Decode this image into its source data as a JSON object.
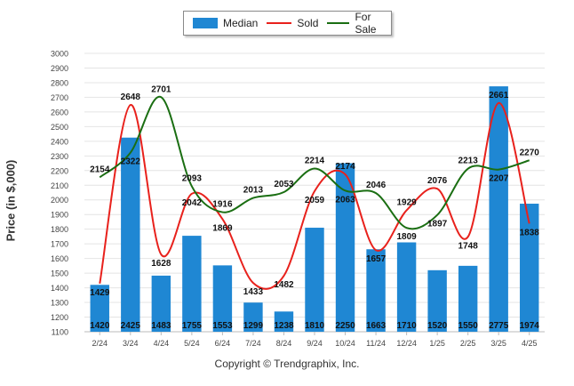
{
  "chart_data": {
    "type": "bar",
    "title": "",
    "xlabel": "",
    "ylabel": "Price (in $,000)",
    "ylim": [
      1100,
      3000
    ],
    "yticks": [
      1100,
      1200,
      1300,
      1400,
      1500,
      1600,
      1700,
      1800,
      1900,
      2000,
      2100,
      2200,
      2300,
      2400,
      2500,
      2600,
      2700,
      2800,
      2900,
      3000
    ],
    "grid": true,
    "legend_position": "top-center",
    "categories": [
      "2/24",
      "3/24",
      "4/24",
      "5/24",
      "6/24",
      "7/24",
      "8/24",
      "9/24",
      "10/24",
      "11/24",
      "12/24",
      "1/25",
      "2/25",
      "3/25",
      "4/25"
    ],
    "series": [
      {
        "name": "Median",
        "kind": "bar",
        "color": "#1f87d3",
        "values": [
          1420,
          2425,
          1483,
          1755,
          1553,
          1299,
          1238,
          1810,
          2250,
          1663,
          1710,
          1520,
          1550,
          2775,
          1974
        ]
      },
      {
        "name": "Sold",
        "kind": "line",
        "color": "#e8211c",
        "values": [
          1429,
          2648,
          1628,
          2042,
          1869,
          1433,
          1482,
          2059,
          2174,
          1657,
          1929,
          2076,
          1748,
          2661,
          1838
        ]
      },
      {
        "name": "For Sale",
        "kind": "line",
        "color": "#1a6e12",
        "values": [
          2154,
          2322,
          2701,
          2093,
          1916,
          2013,
          2053,
          2214,
          2063,
          2046,
          1809,
          1897,
          2213,
          2207,
          2270
        ]
      }
    ]
  },
  "legend": {
    "median_label": "Median",
    "sold_label": "Sold",
    "forsale_label": "For Sale"
  },
  "labels": {
    "y_axis": "Price (in $,000)",
    "copyright": "Copyright © Trendgraphix, Inc."
  }
}
